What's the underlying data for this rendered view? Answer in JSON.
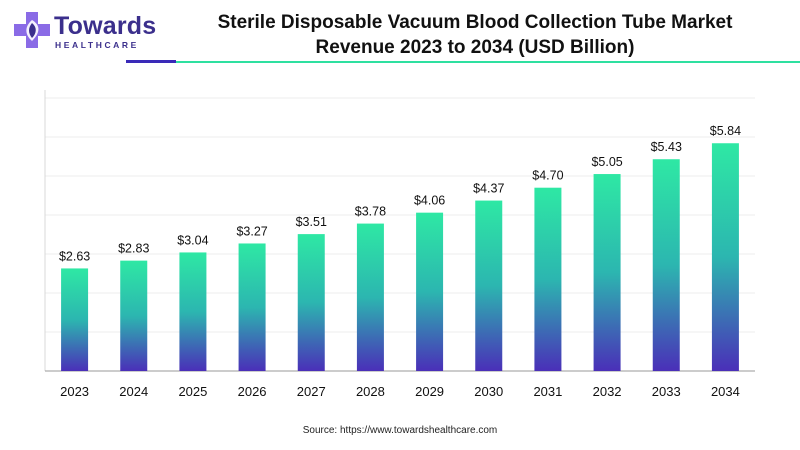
{
  "logo": {
    "name": "Towards",
    "subtitle": "HEALTHCARE",
    "colors": {
      "primary": "#3b2f8c",
      "accent": "#8a6be6"
    }
  },
  "header": {
    "title_line1": "Sterile Disposable Vacuum Blood Collection Tube Market",
    "title_line2": "Revenue 2023 to 2034 (USD Billion)"
  },
  "source": "Source: https://www.towardshealthcare.com",
  "chart_data": {
    "type": "bar",
    "title": "Sterile Disposable Vacuum Blood Collection Tube Market Revenue 2023 to 2034 (USD Billion)",
    "categories": [
      "2023",
      "2024",
      "2025",
      "2026",
      "2027",
      "2028",
      "2029",
      "2030",
      "2031",
      "2032",
      "2033",
      "2034"
    ],
    "values": [
      2.63,
      2.83,
      3.04,
      3.27,
      3.51,
      3.78,
      4.06,
      4.37,
      4.7,
      5.05,
      5.43,
      5.84
    ],
    "value_labels": [
      "$2.63",
      "$2.83",
      "$3.04",
      "$3.27",
      "$3.51",
      "$3.78",
      "$4.06",
      "$4.37",
      "$4.70",
      "$5.05",
      "$5.43",
      "$5.84"
    ],
    "ylim": [
      0,
      7
    ],
    "grid": true,
    "bar_gradient": {
      "top": "#2ee8a4",
      "bottom": "#4a2fb8"
    }
  }
}
